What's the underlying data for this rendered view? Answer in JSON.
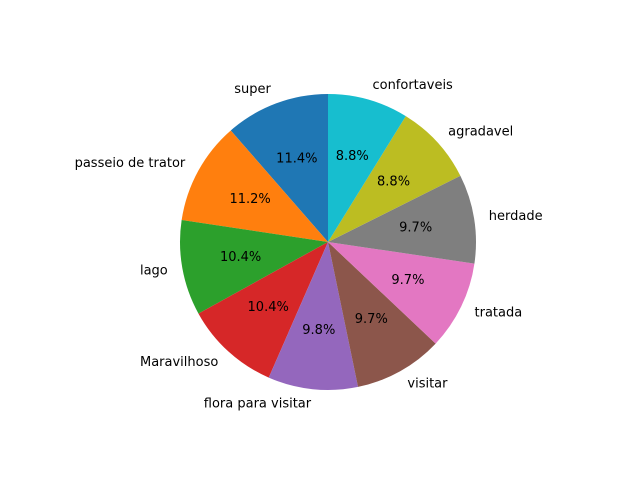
{
  "chart_data": {
    "type": "pie",
    "start_angle_deg": 90,
    "direction": "counterclockwise",
    "slices": [
      {
        "label": "super",
        "value": 11.4,
        "pct_label": "11.4%",
        "color": "#1f77b4"
      },
      {
        "label": "passeio de trator",
        "value": 11.2,
        "pct_label": "11.2%",
        "color": "#ff7f0e"
      },
      {
        "label": "lago",
        "value": 10.4,
        "pct_label": "10.4%",
        "color": "#2ca02c"
      },
      {
        "label": "Maravilhoso",
        "value": 10.4,
        "pct_label": "10.4%",
        "color": "#d62728"
      },
      {
        "label": "flora para visitar",
        "value": 9.8,
        "pct_label": "9.8%",
        "color": "#9467bd"
      },
      {
        "label": "visitar",
        "value": 9.7,
        "pct_label": "9.7%",
        "color": "#8c564b"
      },
      {
        "label": "tratada",
        "value": 9.7,
        "pct_label": "9.7%",
        "color": "#e377c2"
      },
      {
        "label": "herdade",
        "value": 9.7,
        "pct_label": "9.7%",
        "color": "#7f7f7f"
      },
      {
        "label": "agradavel",
        "value": 8.8,
        "pct_label": "8.8%",
        "color": "#bcbd22"
      },
      {
        "label": "confortaveis",
        "value": 8.8,
        "pct_label": "8.8%",
        "color": "#17becf"
      }
    ]
  }
}
